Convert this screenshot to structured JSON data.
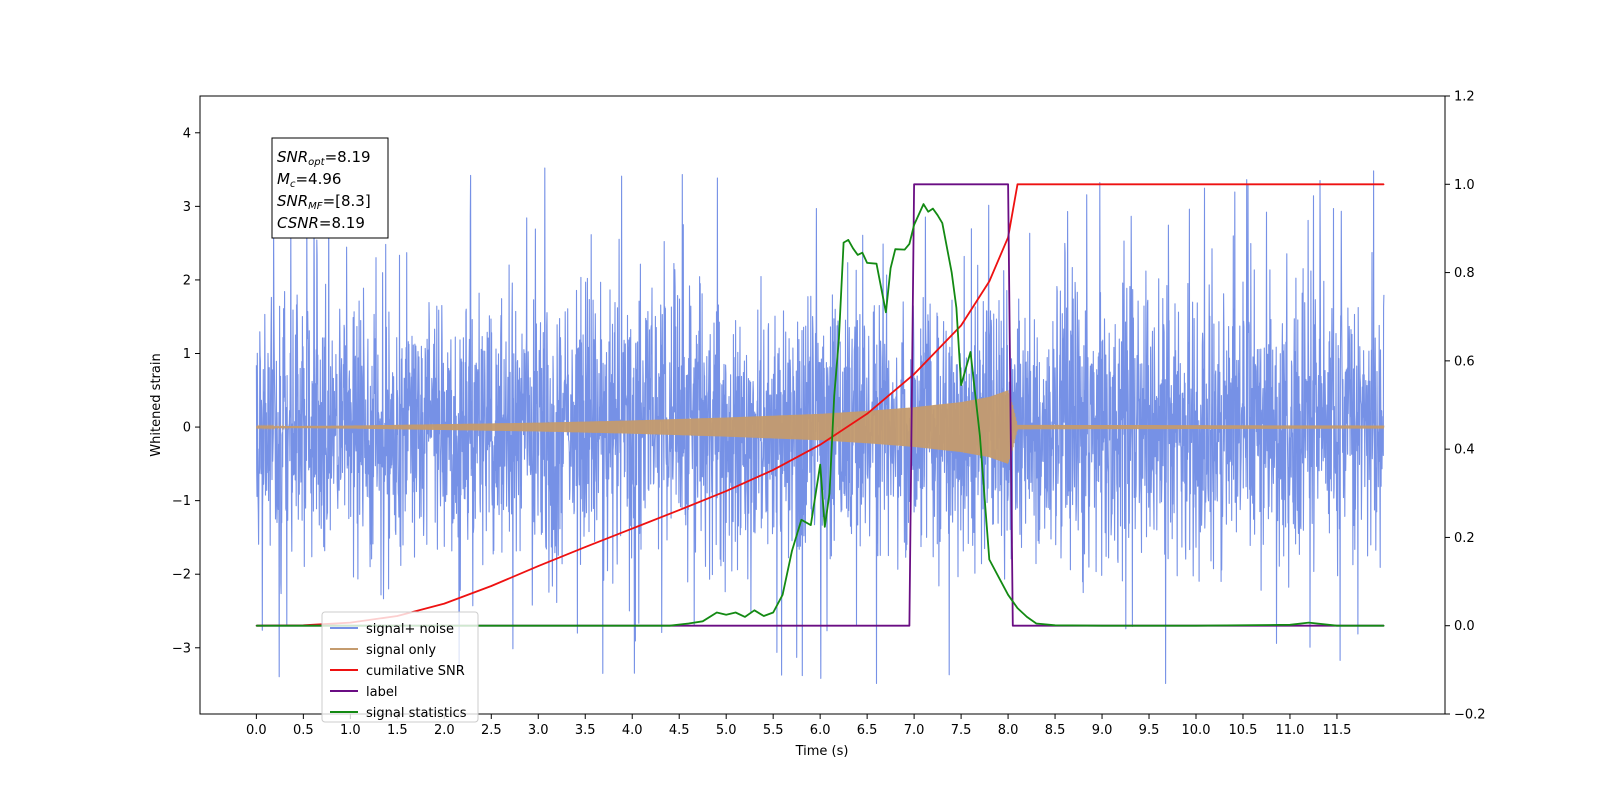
{
  "chart_data": {
    "type": "line",
    "xlabel": "Time (s)",
    "ylabel": "Whitened strain",
    "xlim": [
      -0.6,
      12.65
    ],
    "ylim_left": [
      -3.9,
      4.5
    ],
    "ylim_right": [
      -0.2,
      1.2
    ],
    "x_ticks": [
      0.0,
      0.5,
      1.0,
      1.5,
      2.0,
      2.5,
      3.0,
      3.5,
      4.0,
      4.5,
      5.0,
      5.5,
      6.0,
      6.5,
      7.0,
      7.5,
      8.0,
      8.5,
      9.0,
      9.5,
      10.0,
      10.5,
      11.0,
      11.5
    ],
    "x_tick_labels": [
      "0.0",
      "0.5",
      "1.0",
      "1.5",
      "2.0",
      "2.5",
      "3.0",
      "3.5",
      "4.0",
      "4.5",
      "5.0",
      "5.5",
      "6.0",
      "6.5",
      "7.0",
      "7.5",
      "8.0",
      "8.5",
      "9.0",
      "9.5",
      "10.0",
      "10.5",
      "11.0",
      "11.5"
    ],
    "y_ticks_left": [
      -3,
      -2,
      -1,
      0,
      1,
      2,
      3,
      4
    ],
    "y_tick_labels_left": [
      "−3",
      "−2",
      "−1",
      "0",
      "1",
      "2",
      "3",
      "4"
    ],
    "y_ticks_right": [
      -0.2,
      0.0,
      0.2,
      0.4,
      0.6,
      0.8,
      1.0,
      1.2
    ],
    "y_tick_labels_right": [
      "−0.2",
      "0.0",
      "0.2",
      "0.4",
      "0.6",
      "0.8",
      "1.0",
      "1.2"
    ],
    "grid": false,
    "legend_position": "lower-left",
    "annotation_lines": [
      {
        "main": "SNR",
        "sub": "opt",
        "value": "=8.19"
      },
      {
        "main": "M",
        "sub": "c",
        "value": "=4.96"
      },
      {
        "main": "SNR",
        "sub": "MF",
        "value": "=[8.3]"
      },
      {
        "main": "CSNR",
        "sub": "",
        "value": "=8.19"
      }
    ],
    "series": [
      {
        "name": "signal+ noise",
        "axis": "left",
        "color": "#7691e6",
        "style": "noise",
        "x_range": [
          0.0,
          12.0
        ],
        "envelope_typical": 1.9,
        "envelope_peak": 4.1
      },
      {
        "name": "signal only",
        "axis": "left",
        "color": "#c49b6e",
        "style": "chirp",
        "x_range": [
          0.0,
          12.0
        ],
        "envelope_x": [
          0.0,
          1.0,
          2.0,
          3.0,
          4.0,
          5.0,
          6.0,
          6.5,
          7.0,
          7.5,
          7.8,
          8.0,
          8.05,
          8.1,
          12.0
        ],
        "envelope_y": [
          0.01,
          0.02,
          0.04,
          0.06,
          0.09,
          0.13,
          0.18,
          0.22,
          0.27,
          0.34,
          0.41,
          0.5,
          0.3,
          0.03,
          0.02
        ]
      },
      {
        "name": "cumilative SNR",
        "axis": "right",
        "color": "#ee1111",
        "x": [
          0.0,
          0.5,
          1.0,
          1.5,
          2.0,
          2.5,
          3.0,
          3.5,
          4.0,
          4.5,
          5.0,
          5.5,
          6.0,
          6.5,
          7.0,
          7.5,
          7.8,
          8.0,
          8.05,
          8.1,
          12.0
        ],
        "y": [
          0.0,
          0.001,
          0.007,
          0.022,
          0.05,
          0.09,
          0.135,
          0.178,
          0.22,
          0.262,
          0.305,
          0.353,
          0.41,
          0.48,
          0.57,
          0.68,
          0.78,
          0.88,
          0.94,
          1.0,
          1.0
        ]
      },
      {
        "name": "label",
        "axis": "right",
        "color": "#6a0d83",
        "x": [
          0.0,
          6.95,
          7.0,
          8.0,
          8.05,
          12.0
        ],
        "y": [
          0.0,
          0.0,
          1.0,
          1.0,
          0.0,
          0.0
        ]
      },
      {
        "name": "signal statistics",
        "axis": "right",
        "color": "#138a13",
        "x": [
          0.0,
          4.4,
          4.6,
          4.75,
          4.9,
          5.0,
          5.1,
          5.2,
          5.3,
          5.4,
          5.5,
          5.6,
          5.7,
          5.8,
          5.9,
          6.0,
          6.05,
          6.1,
          6.15,
          6.2,
          6.25,
          6.3,
          6.35,
          6.4,
          6.45,
          6.5,
          6.6,
          6.7,
          6.75,
          6.8,
          6.9,
          6.95,
          7.0,
          7.1,
          7.15,
          7.2,
          7.25,
          7.3,
          7.4,
          7.45,
          7.5,
          7.6,
          7.7,
          7.8,
          7.9,
          8.0,
          8.1,
          8.2,
          8.3,
          8.5,
          9.0,
          10.0,
          11.0,
          11.2,
          11.5,
          12.0
        ],
        "y": [
          0.0,
          0.0,
          0.005,
          0.01,
          0.03,
          0.025,
          0.03,
          0.02,
          0.035,
          0.022,
          0.03,
          0.07,
          0.17,
          0.24,
          0.228,
          0.365,
          0.224,
          0.3,
          0.52,
          0.65,
          0.868,
          0.874,
          0.855,
          0.84,
          0.845,
          0.822,
          0.82,
          0.71,
          0.81,
          0.853,
          0.852,
          0.865,
          0.908,
          0.955,
          0.938,
          0.945,
          0.93,
          0.912,
          0.8,
          0.72,
          0.545,
          0.62,
          0.43,
          0.15,
          0.11,
          0.07,
          0.04,
          0.02,
          0.005,
          0.001,
          0.0,
          0.0,
          0.002,
          0.007,
          0.0,
          0.0
        ]
      }
    ]
  }
}
